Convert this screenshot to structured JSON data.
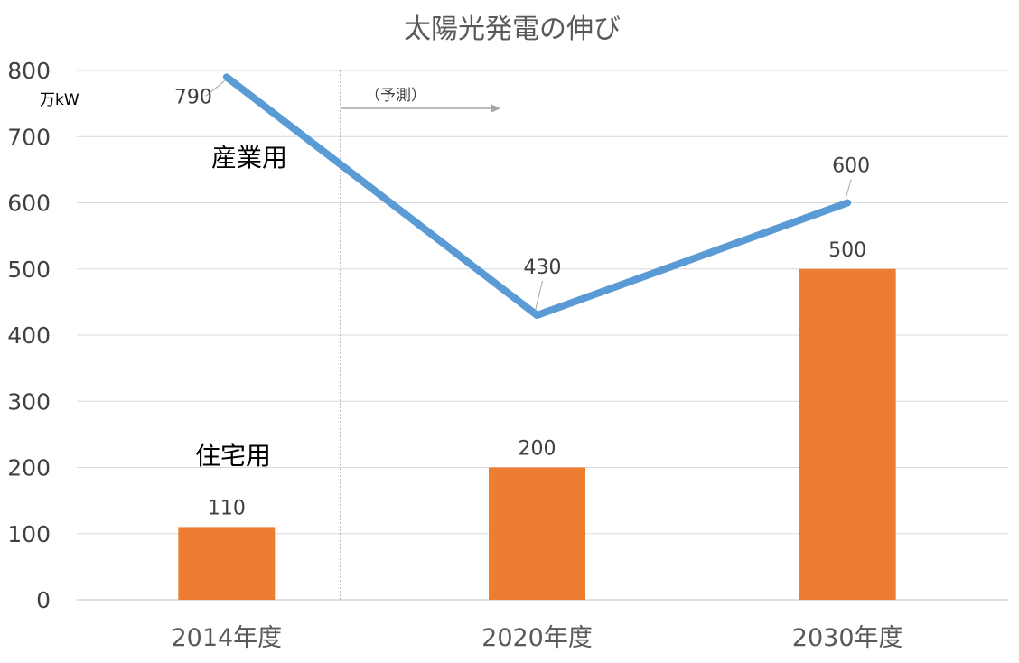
{
  "chart_data": {
    "type": "bar",
    "title": "太陽光発電の伸び",
    "ylabel": "万kW",
    "ylim": [
      0,
      800
    ],
    "yticks": [
      0,
      100,
      200,
      300,
      400,
      500,
      600,
      700,
      800
    ],
    "categories": [
      "2014年度",
      "2020年度",
      "2030年度"
    ],
    "grid": true,
    "legend": "none",
    "series": [
      {
        "name": "住宅用",
        "type": "bar",
        "values": [
          110,
          200,
          500
        ],
        "color": "#ED7D31"
      },
      {
        "name": "産業用",
        "type": "line",
        "values": [
          790,
          430,
          600
        ],
        "color": "#5B9BD5"
      }
    ],
    "annotations": {
      "forecast_label": "（予測）"
    }
  }
}
